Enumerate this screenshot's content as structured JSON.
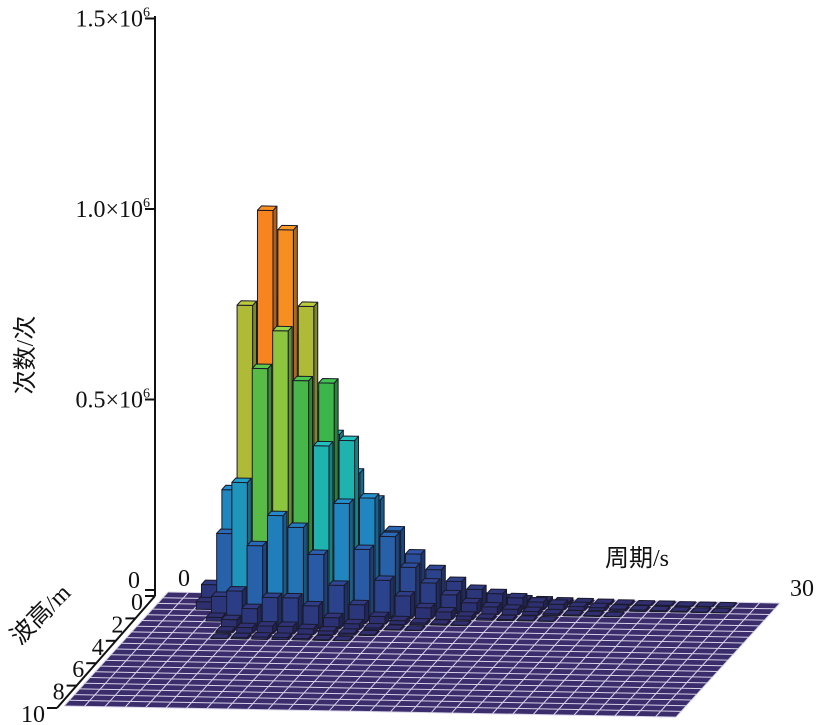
{
  "chart_data": {
    "type": "bar3d",
    "title": "",
    "xlabel": "周期/s",
    "ylabel": "波高/m",
    "zlabel": "次数/次",
    "xlim": [
      0,
      30
    ],
    "ylim": [
      0,
      10
    ],
    "zlim": [
      0,
      1500000
    ],
    "x_tick_labels": [
      "0",
      "30"
    ],
    "y_tick_labels": [
      "0",
      "2",
      "4",
      "6",
      "8",
      "10"
    ],
    "z_tick_labels": [
      "0",
      "0.5×10⁶",
      "1.0×10⁶",
      "1.5×10⁶"
    ],
    "z_ticks": [
      0,
      500000,
      1000000,
      1500000
    ],
    "x_bin_width": 1,
    "y_bin_width": 0.5,
    "z_scale": 10000,
    "z_note": "rows = wave-height bins from 0 m upward (0.5 m each); columns = period bins 0–30 s (1 s each); values ×10000; unlisted rows are zero",
    "z": [
      [
        0,
        0,
        3,
        6,
        8,
        8,
        7,
        6,
        5,
        4,
        3.5,
        3,
        2.5,
        2,
        1.8,
        1.5,
        1.2,
        1,
        0.8,
        0.6,
        0.5,
        0.4,
        0.3,
        0.2,
        0.2,
        0.1,
        0.1,
        0.1,
        0,
        0
      ],
      [
        0,
        0,
        5,
        30,
        60,
        80,
        70,
        55,
        45,
        35,
        28,
        20,
        14,
        10,
        7,
        5,
        4,
        3,
        2,
        1.5,
        1,
        0.8,
        0.5,
        0.4,
        0.3,
        0.2,
        0.1,
        0.1,
        0,
        0
      ],
      [
        0,
        0,
        2,
        20,
        80,
        105,
        100,
        80,
        60,
        45,
        30,
        20,
        12,
        8,
        5,
        3,
        2,
        1.5,
        1,
        0.5,
        0.3,
        0.2,
        0.1,
        0,
        0,
        0,
        0,
        0,
        0,
        0
      ],
      [
        0,
        0,
        0,
        5,
        35,
        65,
        75,
        62,
        45,
        30,
        18,
        10,
        6,
        3,
        2,
        1,
        0.5,
        0.3,
        0.2,
        0.1,
        0,
        0,
        0,
        0,
        0,
        0,
        0,
        0,
        0,
        0
      ],
      [
        0,
        0,
        0,
        1,
        8,
        20,
        28,
        25,
        18,
        10,
        5,
        2,
        1,
        0.5,
        0.3,
        0.1,
        0,
        0,
        0,
        0,
        0,
        0,
        0,
        0,
        0,
        0,
        0,
        0,
        0,
        0
      ],
      [
        0,
        0,
        0,
        0,
        2,
        5,
        8,
        8,
        6,
        3,
        1.5,
        0.5,
        0.2,
        0.1,
        0,
        0,
        0,
        0,
        0,
        0,
        0,
        0,
        0,
        0,
        0,
        0,
        0,
        0,
        0,
        0
      ],
      [
        0,
        0,
        0,
        0,
        0.5,
        1.5,
        2,
        2,
        1.5,
        1,
        0.5,
        0.2,
        0,
        0,
        0,
        0,
        0,
        0,
        0,
        0,
        0,
        0,
        0,
        0,
        0,
        0,
        0,
        0,
        0,
        0
      ],
      [
        0,
        0,
        0,
        0,
        0.1,
        0.4,
        0.6,
        0.6,
        0.4,
        0.2,
        0.1,
        0,
        0,
        0,
        0,
        0,
        0,
        0,
        0,
        0,
        0,
        0,
        0,
        0,
        0,
        0,
        0,
        0,
        0,
        0
      ]
    ],
    "grid": true,
    "colormap": [
      "#2d2a68",
      "#2a4f9e",
      "#1f86c0",
      "#1fb3b0",
      "#3cb54a",
      "#8cc63f",
      "#f5a623",
      "#f7841e"
    ]
  }
}
